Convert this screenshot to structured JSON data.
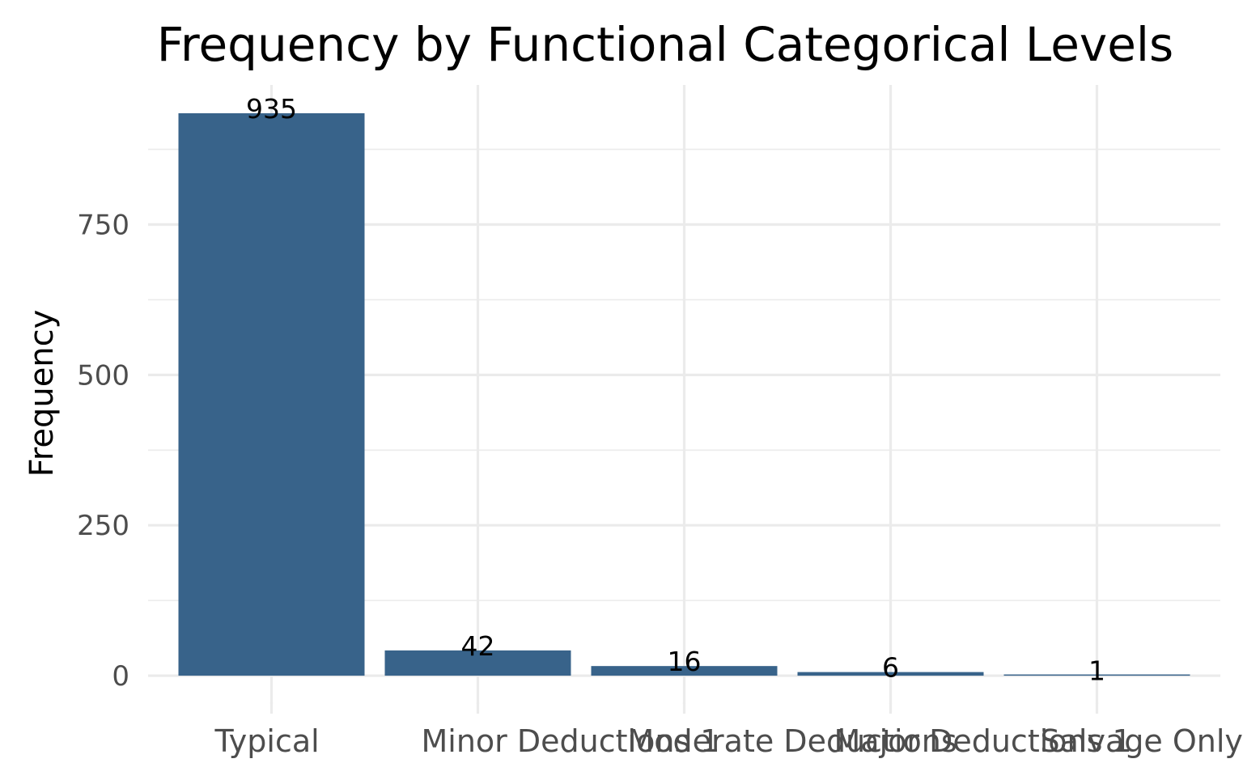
{
  "chart_data": {
    "type": "bar",
    "title": "Frequency by Functional Categorical Levels",
    "xlabel": "",
    "ylabel": "Frequency",
    "categories": [
      "Typical",
      "Minor Deductions 1",
      "Moderate Deductions",
      "Major Deductions 1",
      "Salvage Only"
    ],
    "values": [
      935,
      42,
      16,
      6,
      1
    ],
    "data_labels": [
      "935",
      "42",
      "16",
      "6",
      "1"
    ],
    "y_ticks": [
      0,
      250,
      500,
      750
    ],
    "y_tick_labels": [
      "0",
      "250",
      "500",
      "750"
    ],
    "ylim": [
      -47,
      982
    ],
    "grid": true,
    "legend": "none",
    "bar_color": "#38638A"
  }
}
